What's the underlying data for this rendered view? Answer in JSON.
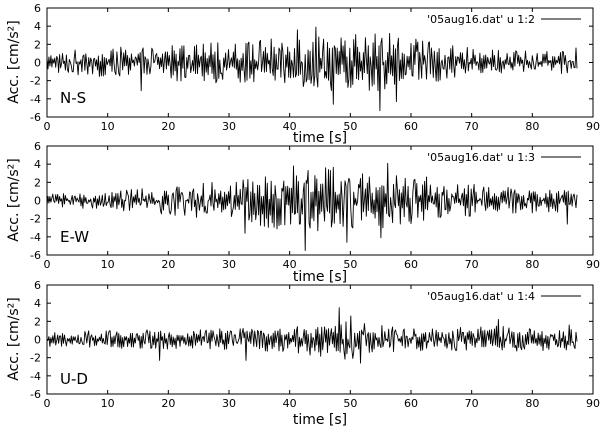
{
  "chart_data": [
    {
      "type": "line",
      "panel_label": "N-S",
      "xlabel": "time [s]",
      "ylabel": "Acc. [cm/s²]",
      "xlim": [
        0,
        90
      ],
      "ylim": [
        -6,
        6
      ],
      "xticks": [
        0,
        10,
        20,
        30,
        40,
        50,
        60,
        70,
        80,
        90
      ],
      "yticks": [
        -6,
        -4,
        -2,
        0,
        2,
        4,
        6
      ],
      "legend_position": "top-right",
      "series": [
        {
          "name": "'05aug16.dat' u 1:2",
          "color": "#000000",
          "x_range": [
            0,
            87.5
          ],
          "envelope": {
            "t": [
              0,
              10,
              20,
              30,
              35,
              40,
              45,
              50,
              55,
              60,
              65,
              70,
              75,
              80,
              87.5
            ],
            "amp": [
              1.2,
              1.6,
              2.0,
              2.3,
              2.6,
              2.9,
              3.3,
              3.0,
              3.8,
              2.7,
              2.0,
              1.7,
              1.4,
              1.3,
              1.2
            ]
          },
          "peaks": [
            {
              "x": 15.5,
              "y": -3.1
            },
            {
              "x": 41.2,
              "y": 3.6
            },
            {
              "x": 44.3,
              "y": 3.9
            },
            {
              "x": 47.2,
              "y": -4.6
            },
            {
              "x": 54.9,
              "y": -5.3
            },
            {
              "x": 56.5,
              "y": 3.2
            },
            {
              "x": 57.6,
              "y": -4.3
            },
            {
              "x": 87.2,
              "y": 1.6
            }
          ]
        }
      ]
    },
    {
      "type": "line",
      "panel_label": "E-W",
      "xlabel": "time [s]",
      "ylabel": "Acc. [cm/s²]",
      "xlim": [
        0,
        90
      ],
      "ylim": [
        -6,
        6
      ],
      "xticks": [
        0,
        10,
        20,
        30,
        40,
        50,
        60,
        70,
        80,
        90
      ],
      "yticks": [
        -6,
        -4,
        -2,
        0,
        2,
        4,
        6
      ],
      "legend_position": "top-right",
      "series": [
        {
          "name": "'05aug16.dat' u 1:3",
          "color": "#000000",
          "x_range": [
            0,
            87.5
          ],
          "envelope": {
            "t": [
              0,
              10,
              20,
              30,
              35,
              40,
              45,
              50,
              55,
              60,
              65,
              70,
              75,
              80,
              87.5
            ],
            "amp": [
              0.7,
              1.0,
              1.6,
              2.2,
              2.8,
              3.4,
              3.8,
              3.6,
              3.5,
              2.6,
              2.0,
              1.8,
              1.6,
              1.5,
              1.2
            ]
          },
          "peaks": [
            {
              "x": 32.7,
              "y": -3.6
            },
            {
              "x": 40.6,
              "y": 3.8
            },
            {
              "x": 42.6,
              "y": -5.5
            },
            {
              "x": 46.4,
              "y": 3.4
            },
            {
              "x": 49.5,
              "y": -4.6
            },
            {
              "x": 55.0,
              "y": -4.1
            },
            {
              "x": 56.2,
              "y": 4.1
            },
            {
              "x": 62.5,
              "y": 2.6
            },
            {
              "x": 85.8,
              "y": -2.6
            }
          ]
        }
      ]
    },
    {
      "type": "line",
      "panel_label": "U-D",
      "xlabel": "time [s]",
      "ylabel": "Acc. [cm/s²]",
      "xlim": [
        0,
        90
      ],
      "ylim": [
        -6,
        6
      ],
      "xticks": [
        0,
        10,
        20,
        30,
        40,
        50,
        60,
        70,
        80,
        90
      ],
      "yticks": [
        -6,
        -4,
        -2,
        0,
        2,
        4,
        6
      ],
      "legend_position": "top-right",
      "series": [
        {
          "name": "'05aug16.dat' u 1:4",
          "color": "#000000",
          "x_range": [
            0,
            87.5
          ],
          "envelope": {
            "t": [
              0,
              10,
              20,
              30,
              35,
              40,
              45,
              50,
              55,
              60,
              65,
              70,
              75,
              80,
              87.5
            ],
            "amp": [
              0.9,
              1.0,
              1.1,
              1.2,
              1.3,
              1.4,
              1.9,
              2.3,
              1.6,
              1.4,
              1.3,
              1.4,
              1.5,
              1.3,
              1.2
            ]
          },
          "peaks": [
            {
              "x": 18.5,
              "y": -2.3
            },
            {
              "x": 32.8,
              "y": -2.3
            },
            {
              "x": 48.2,
              "y": 3.5
            },
            {
              "x": 50.0,
              "y": 2.6
            },
            {
              "x": 51.6,
              "y": -2.6
            },
            {
              "x": 74.4,
              "y": 2.2
            },
            {
              "x": 86.1,
              "y": 1.6
            }
          ]
        }
      ]
    }
  ]
}
